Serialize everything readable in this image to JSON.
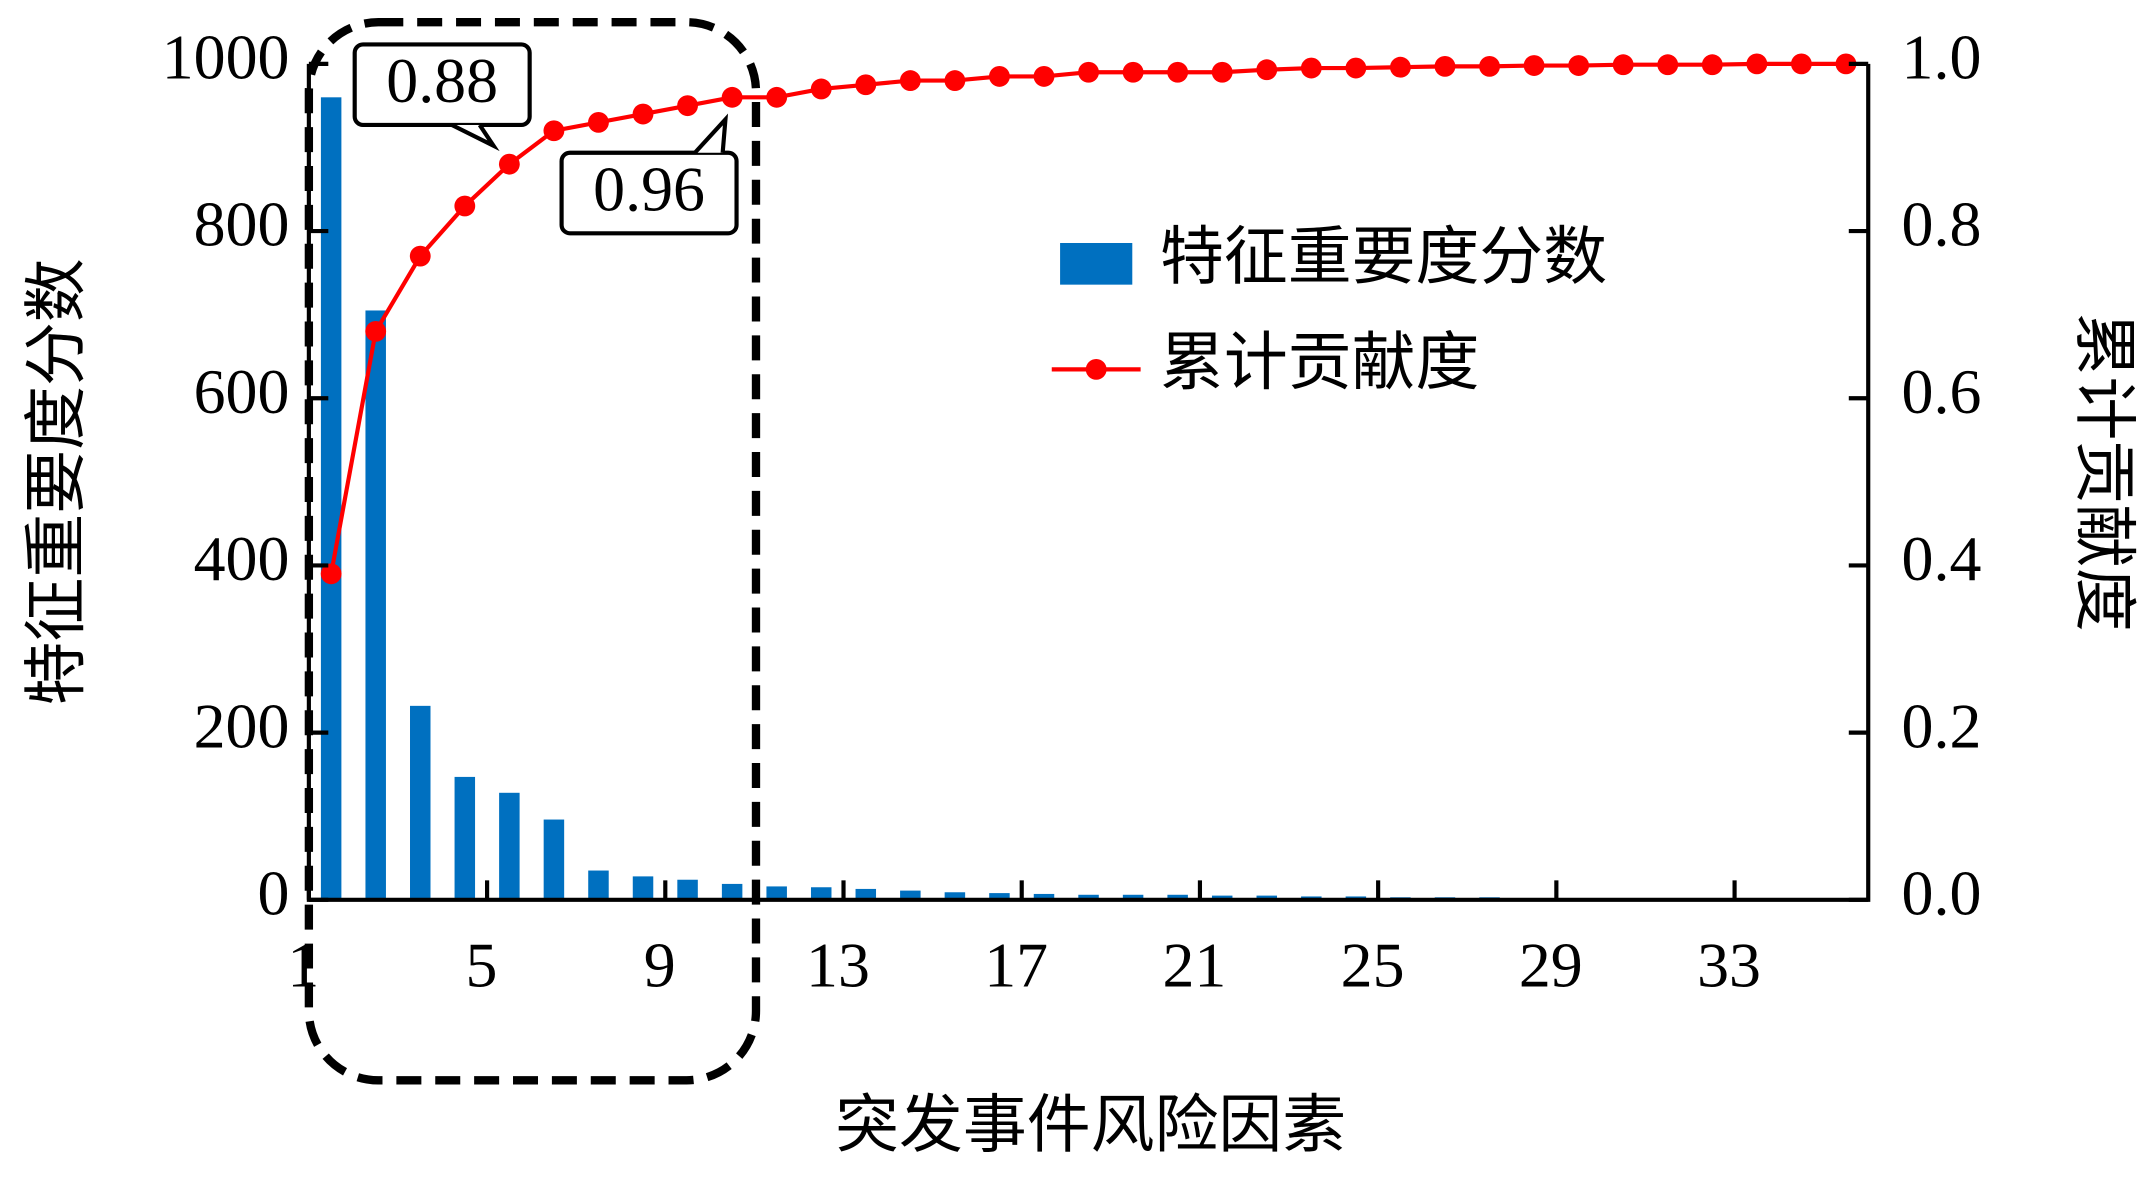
{
  "chart_data": {
    "type": "bar_line",
    "x_label": "突发事件风险因素",
    "y_label": "特征重要度分数",
    "y2_label": "累计贡献度",
    "x": [
      1.5,
      2.5,
      3.5,
      4.5,
      5.5,
      6.5,
      7.5,
      8.5,
      9.5,
      10.5,
      11.5,
      12.5,
      13.5,
      14.5,
      15.5,
      16.5,
      17.5,
      18.5,
      19.5,
      20.5,
      21.5,
      22.5,
      23.5,
      24.5,
      25.5,
      26.5,
      27.5,
      28.5,
      29.5,
      30.5,
      31.5,
      32.5,
      33.5,
      34.5,
      35.5
    ],
    "series": [
      {
        "name": "特征重要度分数",
        "color": "#0070c0",
        "kind": "bar",
        "values": [
          960,
          705,
          232,
          147,
          128,
          96,
          35,
          28,
          24,
          19,
          16,
          15,
          13,
          11,
          9,
          8,
          7,
          6,
          6,
          6,
          5,
          5,
          4,
          4,
          3,
          3,
          3,
          2,
          2,
          2,
          2,
          2,
          2,
          2,
          2
        ]
      },
      {
        "name": "累计贡献度",
        "color": "#ff0000",
        "kind": "line",
        "axis": "y2",
        "values": [
          0.39,
          0.68,
          0.77,
          0.83,
          0.88,
          0.92,
          0.93,
          0.94,
          0.95,
          0.96,
          0.96,
          0.97,
          0.975,
          0.98,
          0.98,
          0.985,
          0.985,
          0.99,
          0.99,
          0.99,
          0.99,
          0.993,
          0.995,
          0.995,
          0.996,
          0.997,
          0.997,
          0.998,
          0.998,
          0.999,
          0.999,
          0.999,
          1.0,
          1.0,
          1.0
        ]
      }
    ],
    "annotations": [
      "0.88",
      "0.96"
    ],
    "xlim": [
      1,
      36
    ],
    "xticks": [
      1,
      5,
      9,
      13,
      17,
      21,
      25,
      29,
      33
    ],
    "ylim": [
      0,
      1000
    ],
    "yticks": [
      0,
      200,
      400,
      600,
      800,
      1000
    ],
    "y2lim": [
      0,
      1
    ],
    "y2ticks": [
      {
        "value": 0,
        "label": "0.0"
      },
      {
        "value": 0.2,
        "label": "0.2"
      },
      {
        "value": 0.4,
        "label": "0.4"
      },
      {
        "value": 0.6,
        "label": "0.6"
      },
      {
        "value": 0.8,
        "label": "0.8"
      },
      {
        "value": 1,
        "label": "1.0"
      }
    ],
    "legend_position": "upper right"
  }
}
